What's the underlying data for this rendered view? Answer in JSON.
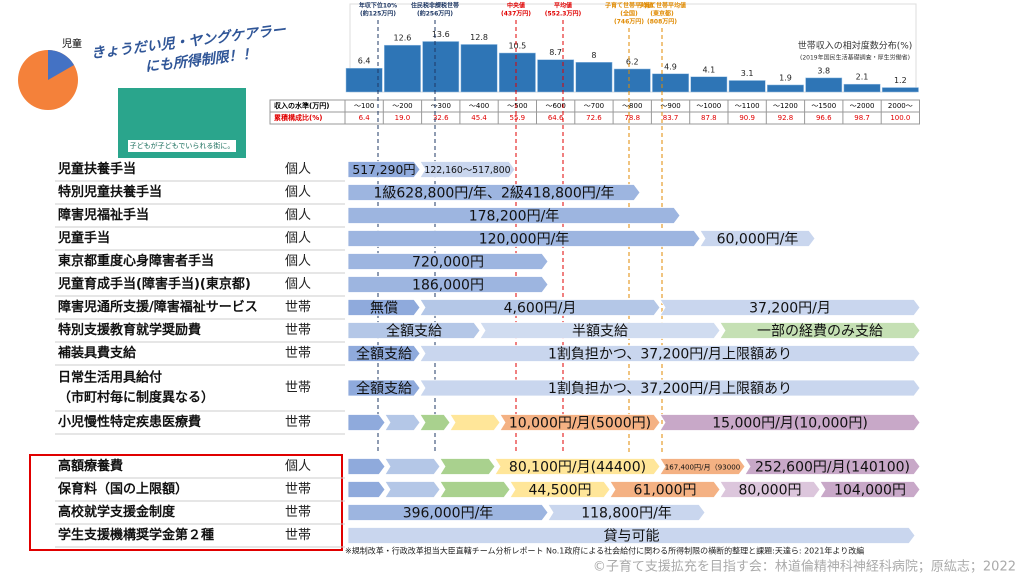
{
  "header": {
    "callout": [
      "きょうだい児・ヤングケアラー",
      "にも所得制限！！"
    ],
    "pie_label": "児童",
    "poster_caption": "子どもが子どもでいられる街に。"
  },
  "chart_data": {
    "type": "bar",
    "title": "世帯収入の相対度数分布(%)",
    "subtitle": "(2019年国民生活基礎調査・厚生労働省)",
    "categories": [
      "～100",
      "～200",
      "～300",
      "～400",
      "～500",
      "～600",
      "～700",
      "～800",
      "～900",
      "～1000",
      "～1100",
      "～1200",
      "～1500",
      "～2000",
      "2000～"
    ],
    "values": [
      6.4,
      12.6,
      13.6,
      12.8,
      10.5,
      8.7,
      8,
      6.2,
      4.9,
      4.1,
      3.1,
      1.9,
      3.8,
      2.1,
      1.2
    ],
    "color": "#2e75b6",
    "ylim": [
      0,
      14
    ],
    "annotations": [
      {
        "lines": [
          "年収下位10%",
          "(約125万円)"
        ],
        "color": "#1f3864"
      },
      {
        "lines": [
          "住民税非課税世帯",
          "(約256万円)"
        ],
        "color": "#1f3864"
      },
      {
        "lines": [
          "中央値",
          "(437万円)"
        ],
        "color": "#e00000"
      },
      {
        "lines": [
          "平均値",
          "(552.3万円)"
        ],
        "color": "#e00000"
      },
      {
        "lines": [
          "子育て世帯平均値",
          "(全国)",
          "(746万円)"
        ],
        "color": "#e08a00"
      },
      {
        "lines": [
          "子育て世帯平均値",
          "(東京都)",
          "(808万円)"
        ],
        "color": "#e08a00"
      }
    ]
  },
  "income_table": {
    "row_labels": [
      "収入の水準(万円)",
      "累積構成比(%)"
    ],
    "cumulative": [
      "6.4",
      "19.0",
      "32.6",
      "45.4",
      "55.9",
      "64.6",
      "72.6",
      "78.8",
      "83.7",
      "87.8",
      "90.9",
      "92.8",
      "96.6",
      "98.7",
      "100.0"
    ]
  },
  "benefits": {
    "rows": [
      {
        "name": [
          "児童扶養手当"
        ],
        "unit": "個人",
        "segments": [
          {
            "label": "517,290円",
            "color": "#8faadc"
          },
          {
            "label": "122,160～517,800",
            "color": "#c9d6ee"
          }
        ]
      },
      {
        "name": [
          "特別児童扶養手当"
        ],
        "unit": "個人",
        "segments": [
          {
            "label": "1級628,800円/年、2級418,800円/年",
            "color": "#9db5e0"
          }
        ]
      },
      {
        "name": [
          "障害児福祉手当"
        ],
        "unit": "個人",
        "segments": [
          {
            "label": "178,200円/年",
            "color": "#9db5e0"
          }
        ]
      },
      {
        "name": [
          "児童手当"
        ],
        "unit": "個人",
        "segments": [
          {
            "label": "120,000円/年",
            "color": "#9db5e0"
          },
          {
            "label": "60,000円/年",
            "color": "#c9d6ee"
          }
        ]
      },
      {
        "name": [
          "東京都重度心身障害者手当"
        ],
        "unit": "個人",
        "segments": [
          {
            "label": "720,000円",
            "color": "#9db5e0"
          }
        ]
      },
      {
        "name": [
          "児童育成手当(障害手当)(東京都)"
        ],
        "unit": "個人",
        "segments": [
          {
            "label": "186,000円",
            "color": "#9db5e0"
          }
        ]
      },
      {
        "name": [
          "障害児通所支援/障害福祉サービス"
        ],
        "unit": "世帯",
        "segments": [
          {
            "label": "無償",
            "color": "#8faadc"
          },
          {
            "label": "4,600円/月",
            "color": "#b4c7e7"
          },
          {
            "label": "37,200円/月",
            "color": "#c9d6ee"
          }
        ]
      },
      {
        "name": [
          "特別支援教育就学奨励費"
        ],
        "unit": "世帯",
        "segments": [
          {
            "label": "全額支給",
            "color": "#b4c7e7"
          },
          {
            "label": "半額支給",
            "color": "#d0dcf0"
          },
          {
            "label": "一部の経費のみ支給",
            "color": "#c5e0b4"
          }
        ]
      },
      {
        "name": [
          "補装具費支給"
        ],
        "unit": "世帯",
        "segments": [
          {
            "label": "全額支給",
            "color": "#8faadc"
          },
          {
            "label": "1割負担かつ、37,200円/月上限額あり",
            "color": "#c9d6ee"
          }
        ]
      },
      {
        "name": [
          "日常生活用具給付",
          "（市町村毎に制度異なる）"
        ],
        "unit": "世帯",
        "segments": [
          {
            "label": "全額支給",
            "color": "#8faadc"
          },
          {
            "label": "1割負担かつ、37,200円/月上限額あり",
            "color": "#c9d6ee"
          }
        ]
      },
      {
        "name": [
          "小児慢性特定疾患医療費"
        ],
        "unit": "世帯",
        "segments": [
          {
            "color": "#8faadc"
          },
          {
            "color": "#b4c7e7"
          },
          {
            "color": "#a9d18e"
          },
          {
            "color": "#ffe699"
          },
          {
            "label": "10,000円/月(5000円)",
            "color": "#f4b183"
          },
          {
            "label": "15,000円/月(10,000円)",
            "color": "#c8a8c8"
          }
        ]
      },
      {
        "name": [
          "高額療養費"
        ],
        "unit": "個人",
        "segments": [
          {
            "color": "#8faadc"
          },
          {
            "color": "#b4c7e7"
          },
          {
            "color": "#a9d18e"
          },
          {
            "label": "80,100円/月(44400)",
            "color": "#ffe699"
          },
          {
            "label": "167,400円/月（93000",
            "color": "#f4b183"
          },
          {
            "label": "252,600円/月(140100)",
            "color": "#c8a8c8"
          }
        ]
      },
      {
        "name": [
          "保育料（国の上限額）"
        ],
        "unit": "世帯",
        "segments": [
          {
            "color": "#8faadc"
          },
          {
            "color": "#b4c7e7"
          },
          {
            "color": "#a9d18e"
          },
          {
            "label": "44,500円",
            "color": "#ffe699"
          },
          {
            "label": "61,000円",
            "color": "#f4b183"
          },
          {
            "label": "80,000円",
            "color": "#dcc6dc"
          },
          {
            "label": "104,000円",
            "color": "#c8a8c8"
          }
        ]
      },
      {
        "name": [
          "高校就学支援金制度"
        ],
        "unit": "世帯",
        "segments": [
          {
            "label": "396,000円/年",
            "color": "#9db5e0"
          },
          {
            "label": "118,800円/年",
            "color": "#c9d6ee"
          }
        ]
      },
      {
        "name": [
          "学生支援機構奨学金第２種"
        ],
        "unit": "世帯",
        "segments": [
          {
            "label": "貸与可能",
            "color": "#c9d6ee"
          }
        ]
      }
    ]
  },
  "footnote": "※規制改革・行政改革担当大臣直轄チーム分析レポート No.1政府による社会給付に関わる所得制限の横断的整理と課題:天達ら: 2021年より改編",
  "copyright": "©子育て支援拡充を目指す会：林道倫精神科神経科病院；原紘志；2022"
}
